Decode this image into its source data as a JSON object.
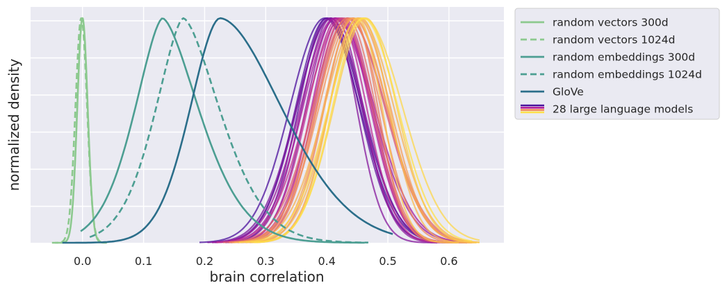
{
  "chart_data": {
    "type": "line",
    "subtype": "kernel density curves",
    "title": "",
    "xlabel": "brain correlation",
    "ylabel": "normalized density",
    "xlim": [
      -0.085,
      0.69
    ],
    "ylim": [
      0,
      1.05
    ],
    "xticks": [
      0.0,
      0.1,
      0.2,
      0.3,
      0.4,
      0.5,
      0.6
    ],
    "xtick_labels": [
      "0.0",
      "0.1",
      "0.2",
      "0.3",
      "0.4",
      "0.5",
      "0.6"
    ],
    "y_tick_labels_shown": false,
    "grid": true,
    "background": "#eaeaf2",
    "legend_position": "outside upper right",
    "series": [
      {
        "name": "random vectors 300d",
        "color": "#8cc98e",
        "dash": "solid",
        "mu": 0.0,
        "sl": 0.0085,
        "sr": 0.0085,
        "k": 2.0,
        "xmin": -0.045,
        "xmax": 0.04
      },
      {
        "name": "random vectors 1024d",
        "color": "#8cc98e",
        "dash": "dashed",
        "mu": -0.002,
        "sl": 0.0095,
        "sr": 0.0095,
        "k": 2.0,
        "xmin": -0.05,
        "xmax": 0.038
      },
      {
        "name": "random embeddings 300d",
        "color": "#4c9e92",
        "dash": "solid",
        "mu": 0.131,
        "sl": 0.044,
        "sr": 0.058,
        "k": 1.6,
        "xmin": -0.003,
        "xmax": 0.462
      },
      {
        "name": "random embeddings 1024d",
        "color": "#4c9e92",
        "dash": "dashed",
        "mu": 0.165,
        "sl": 0.044,
        "sr": 0.058,
        "k": 1.6,
        "xmin": 0.012,
        "xmax": 0.468
      },
      {
        "name": "GloVe",
        "color": "#2b6e8a",
        "dash": "solid",
        "mu": 0.225,
        "sl": 0.048,
        "sr": 0.1,
        "k": 1.8,
        "xmin": -0.033,
        "xmax": 0.508
      },
      {
        "name": "28 large language models",
        "color": "gradient",
        "colors": [
          "#4b0f9c",
          "#b31f9c",
          "#f28b59",
          "#fde04a"
        ],
        "count": 28,
        "mu_range": [
          0.385,
          0.47
        ],
        "sigma_range": [
          0.046,
          0.057
        ]
      }
    ],
    "legend": [
      {
        "label": "random vectors 300d",
        "style": "solid",
        "color": "#8cc98e"
      },
      {
        "label": "random vectors 1024d",
        "style": "dashed",
        "color": "#8cc98e"
      },
      {
        "label": "random embeddings 300d",
        "style": "solid",
        "color": "#4c9e92"
      },
      {
        "label": "random embeddings 1024d",
        "style": "dashed",
        "color": "#4c9e92"
      },
      {
        "label": "GloVe",
        "style": "solid",
        "color": "#2b6e8a"
      },
      {
        "label": "28 large language models",
        "style": "gradient",
        "colors": [
          "#4b0f9c",
          "#b31f9c",
          "#f28b59",
          "#fde04a"
        ]
      }
    ]
  }
}
